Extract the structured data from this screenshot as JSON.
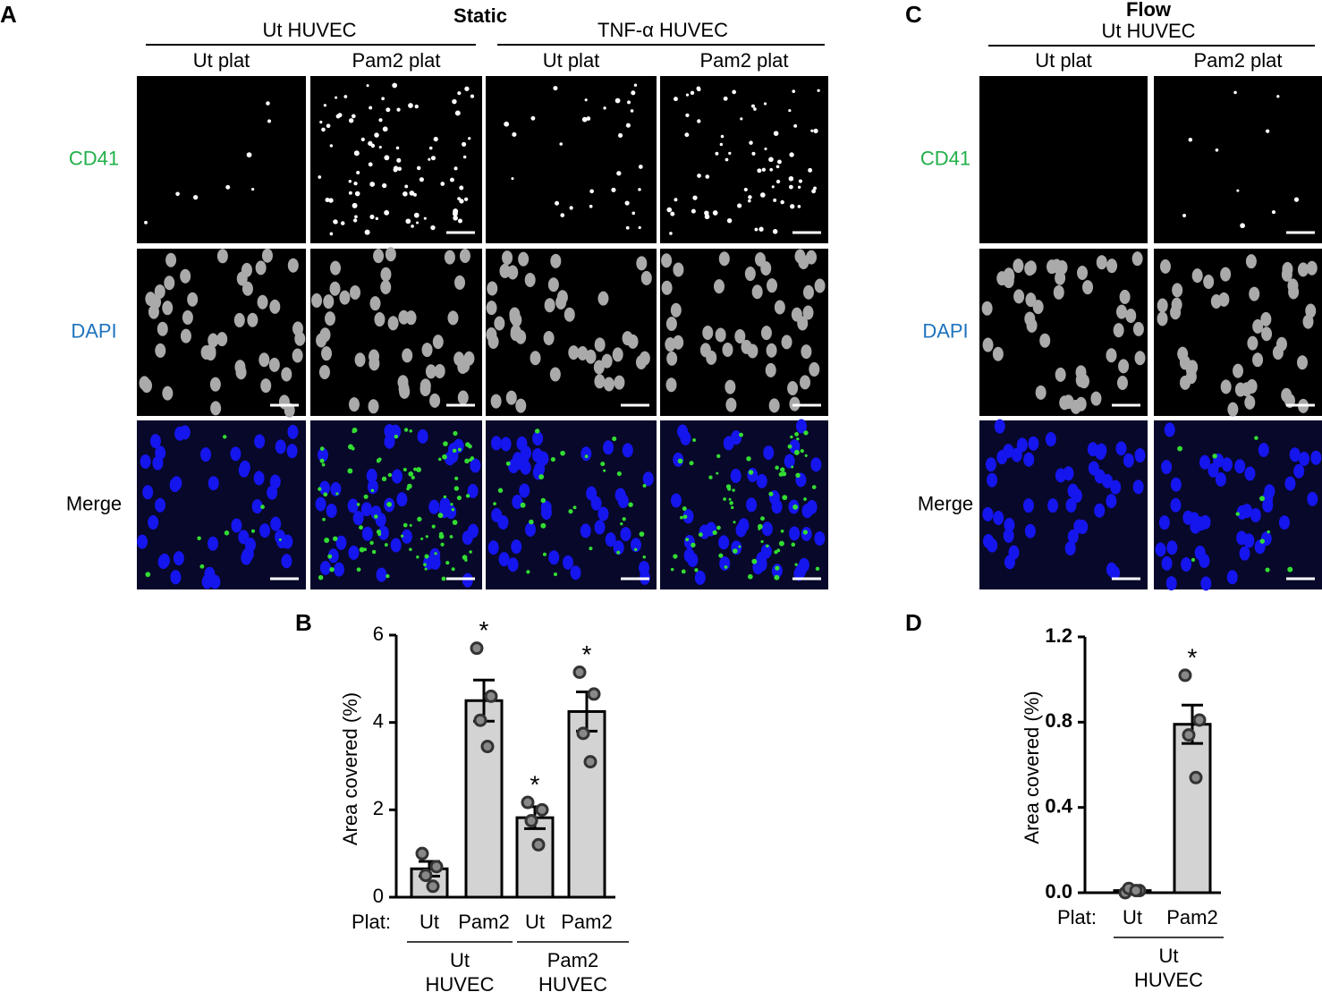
{
  "panel_labels": [
    "A",
    "B",
    "C",
    "D"
  ],
  "panel_a": {
    "condition": "Static",
    "groups": [
      "Ut HUVEC",
      "TNF-α HUVEC"
    ],
    "columns": [
      "Ut plat",
      "Pam2 plat",
      "Ut plat",
      "Pam2 plat"
    ],
    "rows": [
      "CD41",
      "DAPI",
      "Merge"
    ]
  },
  "panel_c": {
    "condition": "Flow",
    "group": "Ut HUVEC",
    "columns": [
      "Ut plat",
      "Pam2 plat"
    ],
    "rows": [
      "CD41",
      "DAPI",
      "Merge"
    ]
  },
  "chart_data": [
    {
      "type": "bar",
      "y_label": "Area covered (%)",
      "x_prefix": "Plat:",
      "categories": [
        "Ut",
        "Pam2",
        "Ut",
        "Pam2"
      ],
      "group_labels": [
        [
          "Ut",
          "HUVEC"
        ],
        [
          "Pam2",
          "HUVEC"
        ]
      ],
      "values": [
        0.65,
        4.5,
        1.82,
        4.25
      ],
      "errors": [
        0.17,
        0.47,
        0.25,
        0.45
      ],
      "points": [
        [
          1.0,
          0.7,
          0.5,
          0.25
        ],
        [
          5.7,
          4.6,
          4.05,
          3.45
        ],
        [
          2.17,
          2.0,
          1.75,
          1.2
        ],
        [
          5.15,
          4.65,
          3.75,
          3.1
        ]
      ],
      "significance": [
        null,
        "*",
        "*",
        "*"
      ],
      "color": "#d3d3d3",
      "ylim": [
        0,
        6
      ],
      "yticks": [
        0,
        2,
        4,
        6
      ]
    },
    {
      "type": "bar",
      "y_label": "Area covered (%)",
      "x_prefix": "Plat:",
      "categories": [
        "Ut",
        "Pam2"
      ],
      "group_labels": [
        [
          "Ut",
          "HUVEC"
        ]
      ],
      "values": [
        0.01,
        0.79
      ],
      "errors": [
        0.005,
        0.09
      ],
      "points": [
        [
          0.0,
          0.01,
          0.02,
          0.01
        ],
        [
          1.02,
          0.81,
          0.74,
          0.54
        ]
      ],
      "significance": [
        null,
        "*"
      ],
      "color": "#d3d3d3",
      "ylim": [
        0,
        1.2
      ],
      "yticks": [
        {
          "value": 0,
          "label": "0.0"
        },
        {
          "value": 0.4,
          "label": "0.4"
        },
        {
          "value": 0.8,
          "label": "0.8"
        },
        {
          "value": 1.2,
          "label": "1.2"
        }
      ]
    }
  ]
}
